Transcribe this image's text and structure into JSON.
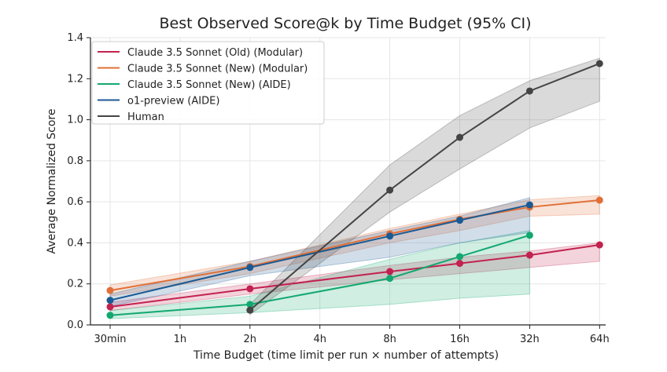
{
  "chart_data": {
    "type": "line",
    "title": "Best Observed Score@k by Time Budget (95% CI)",
    "xlabel": "Time Budget (time limit per run × number of attempts)",
    "ylabel": "Average Normalized Score",
    "categories": [
      "30min",
      "1h",
      "2h",
      "4h",
      "8h",
      "16h",
      "32h",
      "64h"
    ],
    "ylim": [
      0,
      1.4
    ],
    "yticks": [
      "0.0",
      "0.2",
      "0.4",
      "0.6",
      "0.8",
      "1.0",
      "1.2",
      "1.4"
    ],
    "grid": true,
    "legend_position": "top-left",
    "series": [
      {
        "name": "Claude 3.5 Sonnet (Old) (Modular)",
        "color": "#c2224f",
        "points": [
          {
            "x": "30min",
            "y": 0.088,
            "lo": 0.07,
            "hi": 0.11
          },
          {
            "x": "2h",
            "y": 0.176,
            "lo": 0.15,
            "hi": 0.2
          },
          {
            "x": "8h",
            "y": 0.26,
            "lo": 0.22,
            "hi": 0.29
          },
          {
            "x": "16h",
            "y": 0.3,
            "lo": 0.25,
            "hi": 0.33
          },
          {
            "x": "32h",
            "y": 0.34,
            "lo": 0.28,
            "hi": 0.36
          },
          {
            "x": "64h",
            "y": 0.39,
            "lo": 0.31,
            "hi": 0.4
          }
        ]
      },
      {
        "name": "Claude 3.5 Sonnet (New) (Modular)",
        "color": "#e07038",
        "points": [
          {
            "x": "30min",
            "y": 0.168,
            "lo": 0.14,
            "hi": 0.195
          },
          {
            "x": "2h",
            "y": 0.285,
            "lo": 0.25,
            "hi": 0.31
          },
          {
            "x": "8h",
            "y": 0.444,
            "lo": 0.4,
            "hi": 0.47
          },
          {
            "x": "16h",
            "y": 0.515,
            "lo": 0.46,
            "hi": 0.54
          },
          {
            "x": "32h",
            "y": 0.574,
            "lo": 0.53,
            "hi": 0.61
          },
          {
            "x": "64h",
            "y": 0.608,
            "lo": 0.54,
            "hi": 0.63
          }
        ]
      },
      {
        "name": "Claude 3.5 Sonnet (New) (AIDE)",
        "color": "#12a86f",
        "points": [
          {
            "x": "30min",
            "y": 0.047,
            "lo": 0.03,
            "hi": 0.07
          },
          {
            "x": "2h",
            "y": 0.1,
            "lo": 0.06,
            "hi": 0.14
          },
          {
            "x": "8h",
            "y": 0.227,
            "lo": 0.1,
            "hi": 0.32
          },
          {
            "x": "16h",
            "y": 0.333,
            "lo": 0.13,
            "hi": 0.4
          },
          {
            "x": "32h",
            "y": 0.437,
            "lo": 0.15,
            "hi": 0.46
          }
        ]
      },
      {
        "name": "o1-preview (AIDE)",
        "color": "#1a5a94",
        "points": [
          {
            "x": "30min",
            "y": 0.12,
            "lo": 0.09,
            "hi": 0.15
          },
          {
            "x": "2h",
            "y": 0.28,
            "lo": 0.24,
            "hi": 0.31
          },
          {
            "x": "8h",
            "y": 0.433,
            "lo": 0.33,
            "hi": 0.46
          },
          {
            "x": "16h",
            "y": 0.51,
            "lo": 0.4,
            "hi": 0.53
          },
          {
            "x": "32h",
            "y": 0.585,
            "lo": 0.45,
            "hi": 0.62
          }
        ]
      },
      {
        "name": "Human",
        "color": "#444444",
        "points": [
          {
            "x": "2h",
            "y": 0.072,
            "lo": 0.05,
            "hi": 0.1
          },
          {
            "x": "8h",
            "y": 0.657,
            "lo": 0.55,
            "hi": 0.78
          },
          {
            "x": "16h",
            "y": 0.914,
            "lo": 0.76,
            "hi": 1.02
          },
          {
            "x": "32h",
            "y": 1.14,
            "lo": 0.96,
            "hi": 1.19
          },
          {
            "x": "64h",
            "y": 1.274,
            "lo": 1.09,
            "hi": 1.3
          }
        ]
      }
    ]
  }
}
